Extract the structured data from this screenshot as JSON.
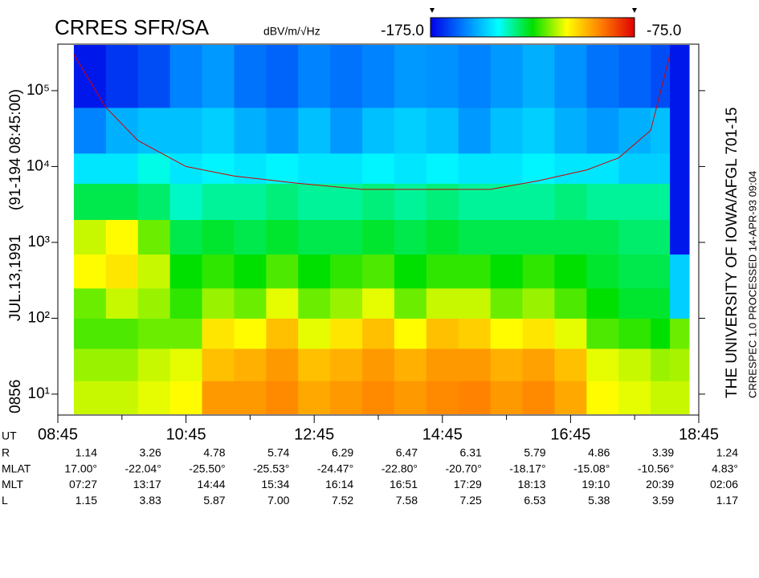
{
  "chart_data": {
    "type": "spectrogram",
    "title": "CRRES SFR/SA",
    "colorbar_label": "dBV/m/√Hz",
    "clim": [
      {
        "value": -175,
        "label": "-175.0"
      },
      {
        "value": -75,
        "label": "-75.0"
      }
    ],
    "colormap": [
      "#0000e8",
      "#0080ff",
      "#00ffff",
      "#00e000",
      "#ffff00",
      "#ff8000",
      "#e00000"
    ],
    "left_labels": [
      "0856",
      "JUL.13,1991",
      "(91-194 08:45:00)"
    ],
    "right_labels": [
      "THE UNIVERSITY OF IOWA/AFGL 701-15",
      "CRRESPEC 1.0   PROCESSED 14-APR-93   09:04"
    ],
    "x_label": "UT",
    "xlim": [
      8.75,
      18.75
    ],
    "xticks": [
      {
        "value": 8.75,
        "label": "08:45"
      },
      {
        "value": 10.75,
        "label": "10:45"
      },
      {
        "value": 12.75,
        "label": "12:45"
      },
      {
        "value": 14.75,
        "label": "14:45"
      },
      {
        "value": 16.75,
        "label": "16:45"
      },
      {
        "value": 18.75,
        "label": "18:45"
      }
    ],
    "xminorticks": [
      9.75,
      11.75,
      13.75,
      15.75,
      17.75
    ],
    "ylog": true,
    "ylim": [
      5.3,
      410000
    ],
    "yticks": [
      {
        "value": 10,
        "label": "10¹"
      },
      {
        "value": 100,
        "label": "10²"
      },
      {
        "value": 1000,
        "label": "10³"
      },
      {
        "value": 10000,
        "label": "10⁴"
      },
      {
        "value": 100000,
        "label": "10⁵"
      }
    ],
    "time_bins": [
      9.0,
      9.5,
      10.0,
      10.5,
      11.0,
      11.5,
      12.0,
      12.5,
      13.0,
      13.5,
      14.0,
      14.5,
      15.0,
      15.5,
      16.0,
      16.5,
      17.0,
      17.5,
      18.0,
      18.3,
      18.6
    ],
    "freq_bins": [
      5.5,
      15,
      40,
      100,
      250,
      700,
      2000,
      6000,
      15000,
      60000,
      400000
    ],
    "z": [
      [
        -112,
        -112,
        -110,
        -108,
        -95,
        -95,
        -93,
        -97,
        -95,
        -93,
        -95,
        -93,
        -92,
        -95,
        -93,
        -97,
        -108,
        -110,
        -112,
        -112
      ],
      [
        -115,
        -115,
        -112,
        -110,
        -100,
        -98,
        -95,
        -100,
        -98,
        -95,
        -98,
        -95,
        -95,
        -98,
        -96,
        -100,
        -110,
        -112,
        -115,
        -114
      ],
      [
        -120,
        -120,
        -118,
        -118,
        -105,
        -108,
        -100,
        -110,
        -105,
        -100,
        -108,
        -100,
        -102,
        -108,
        -105,
        -110,
        -120,
        -122,
        -125,
        -118
      ],
      [
        -118,
        -112,
        -115,
        -122,
        -115,
        -118,
        -110,
        -118,
        -115,
        -110,
        -118,
        -112,
        -112,
        -118,
        -115,
        -120,
        -125,
        -128,
        -128,
        -148
      ],
      [
        -108,
        -105,
        -112,
        -125,
        -122,
        -125,
        -120,
        -125,
        -122,
        -120,
        -125,
        -122,
        -122,
        -125,
        -122,
        -125,
        -128,
        -130,
        -130,
        -148
      ],
      [
        -112,
        -108,
        -118,
        -130,
        -128,
        -130,
        -128,
        -130,
        -130,
        -128,
        -130,
        -128,
        -130,
        -130,
        -130,
        -130,
        -130,
        -132,
        -132,
        -172
      ],
      [
        -130,
        -130,
        -132,
        -138,
        -135,
        -135,
        -133,
        -135,
        -135,
        -133,
        -135,
        -133,
        -135,
        -135,
        -135,
        -133,
        -135,
        -135,
        -135,
        -172
      ],
      [
        -145,
        -145,
        -140,
        -145,
        -143,
        -145,
        -143,
        -145,
        -145,
        -143,
        -145,
        -143,
        -145,
        -145,
        -143,
        -145,
        -145,
        -148,
        -148,
        -172
      ],
      [
        -158,
        -152,
        -150,
        -150,
        -148,
        -152,
        -155,
        -150,
        -155,
        -150,
        -148,
        -150,
        -155,
        -150,
        -148,
        -152,
        -155,
        -152,
        -150,
        -172
      ],
      [
        -172,
        -168,
        -165,
        -158,
        -155,
        -160,
        -162,
        -158,
        -160,
        -158,
        -155,
        -156,
        -158,
        -155,
        -152,
        -156,
        -160,
        -162,
        -165,
        -172
      ]
    ],
    "curve": {
      "color": "#d00000",
      "x": [
        9.0,
        9.5,
        10.0,
        10.75,
        11.5,
        12.5,
        13.5,
        14.5,
        15.5,
        16.25,
        17.0,
        17.5,
        18.0,
        18.3
      ],
      "values": [
        300000,
        60000,
        22000,
        10000,
        7500,
        6000,
        5000,
        5000,
        5000,
        6500,
        9000,
        13000,
        30000,
        300000
      ]
    },
    "ephemeris": [
      {
        "label": "R",
        "values": [
          "1.14",
          "3.26",
          "4.78",
          "5.74",
          "6.29",
          "6.47",
          "6.31",
          "5.79",
          "4.86",
          "3.39",
          "1.24"
        ]
      },
      {
        "label": "MLAT",
        "values": [
          "17.00°",
          "-22.04°",
          "-25.50°",
          "-25.53°",
          "-24.47°",
          "-22.80°",
          "-20.70°",
          "-18.17°",
          "-15.08°",
          "-10.56°",
          "4.83°"
        ]
      },
      {
        "label": "MLT",
        "values": [
          "07:27",
          "13:17",
          "14:44",
          "15:34",
          "16:14",
          "16:51",
          "17:29",
          "18:13",
          "19:10",
          "20:39",
          "02:06"
        ]
      },
      {
        "label": "L",
        "values": [
          "1.15",
          "3.83",
          "5.87",
          "7.00",
          "7.52",
          "7.58",
          "7.25",
          "6.53",
          "5.38",
          "3.59",
          "1.17"
        ]
      }
    ]
  }
}
